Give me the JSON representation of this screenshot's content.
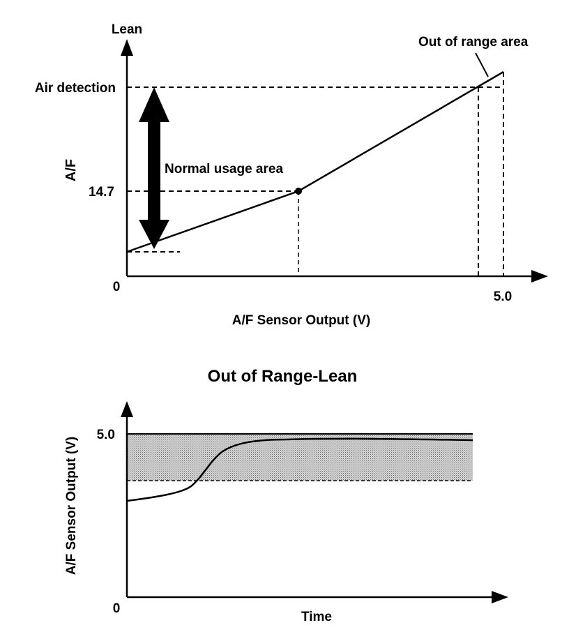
{
  "top_chart": {
    "y_axis_label": "A/F",
    "y_axis_top_label": "Lean",
    "y_tick_air": "Air detection",
    "y_tick_stoich": "14.7",
    "origin_label": "0",
    "x_axis_label": "A/F Sensor Output (V)",
    "x_tick_max": "5.0",
    "annotation_normal": "Normal usage area",
    "annotation_out_of_range": "Out of range area"
  },
  "bottom_chart": {
    "title": "Out of Range-Lean",
    "y_axis_label": "A/F Sensor Output (V)",
    "y_tick_max": "5.0",
    "origin_label": "0",
    "x_axis_label": "Time"
  },
  "colors": {
    "ink": "#000000",
    "shade": "#bdbdbd"
  }
}
